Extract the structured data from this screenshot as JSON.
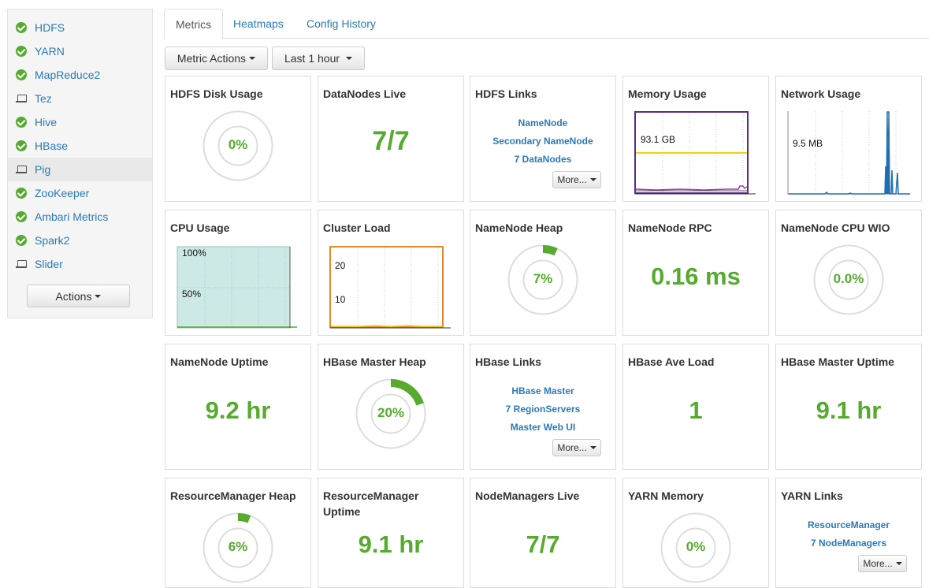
{
  "sidebar": {
    "services": [
      {
        "name": "HDFS",
        "status": "ok"
      },
      {
        "name": "YARN",
        "status": "ok"
      },
      {
        "name": "MapReduce2",
        "status": "ok"
      },
      {
        "name": "Tez",
        "status": "client"
      },
      {
        "name": "Hive",
        "status": "ok"
      },
      {
        "name": "HBase",
        "status": "ok"
      },
      {
        "name": "Pig",
        "status": "client"
      },
      {
        "name": "ZooKeeper",
        "status": "ok"
      },
      {
        "name": "Ambari Metrics",
        "status": "ok"
      },
      {
        "name": "Spark2",
        "status": "ok"
      },
      {
        "name": "Slider",
        "status": "client"
      }
    ],
    "selected_index": 6,
    "actions_label": "Actions"
  },
  "tabs": [
    "Metrics",
    "Heatmaps",
    "Config History"
  ],
  "active_tab": "Metrics",
  "toolbar": {
    "metric_actions_label": "Metric Actions",
    "time_range_label": "Last 1 hour"
  },
  "colors": {
    "accent_green": "#56ab2f",
    "link_blue": "#2a7ab8",
    "memory_border": "#5b2b8f",
    "memory_line": "#f2d11c",
    "network_line": "#1f6fb0",
    "cpu_fill": "#cde9e6",
    "cluster_border": "#e3872a"
  },
  "widgets": {
    "hdfs_disk_usage": {
      "title": "HDFS Disk Usage",
      "value": "0%",
      "fraction": 0.0
    },
    "datanodes_live": {
      "title": "DataNodes Live",
      "value": "7/7"
    },
    "hdfs_links": {
      "title": "HDFS Links",
      "links": [
        "NameNode",
        "Secondary NameNode",
        "7 DataNodes"
      ],
      "more_label": "More..."
    },
    "memory_usage": {
      "title": "Memory Usage",
      "label": "93.1 GB"
    },
    "network_usage": {
      "title": "Network Usage",
      "label": "9.5 MB"
    },
    "cpu_usage": {
      "title": "CPU Usage",
      "labels": [
        "100%",
        "50%"
      ]
    },
    "cluster_load": {
      "title": "Cluster Load",
      "labels": [
        "20",
        "10"
      ]
    },
    "namenode_heap": {
      "title": "NameNode Heap",
      "value": "7%",
      "fraction": 0.07
    },
    "namenode_rpc": {
      "title": "NameNode RPC",
      "value": "0.16 ms"
    },
    "namenode_cpu_wio": {
      "title": "NameNode CPU WIO",
      "value": "0.0%",
      "fraction": 0.0
    },
    "namenode_uptime": {
      "title": "NameNode Uptime",
      "value": "9.2 hr"
    },
    "hbase_master_heap": {
      "title": "HBase Master Heap",
      "value": "20%",
      "fraction": 0.2
    },
    "hbase_links": {
      "title": "HBase Links",
      "links": [
        "HBase Master",
        "7 RegionServers",
        "Master Web UI"
      ],
      "more_label": "More..."
    },
    "hbase_ave_load": {
      "title": "HBase Ave Load",
      "value": "1"
    },
    "hbase_master_uptime": {
      "title": "HBase Master Uptime",
      "value": "9.1 hr"
    },
    "rm_heap": {
      "title": "ResourceManager Heap",
      "value": "6%",
      "fraction": 0.06
    },
    "rm_uptime": {
      "title": "ResourceManager Uptime",
      "value": "9.1 hr"
    },
    "nodemanagers_live": {
      "title": "NodeManagers Live",
      "value": "7/7"
    },
    "yarn_memory": {
      "title": "YARN Memory",
      "value": "0%",
      "fraction": 0.0
    },
    "yarn_links": {
      "title": "YARN Links",
      "links": [
        "ResourceManager",
        "7 NodeManagers"
      ],
      "more_label": "More..."
    }
  }
}
